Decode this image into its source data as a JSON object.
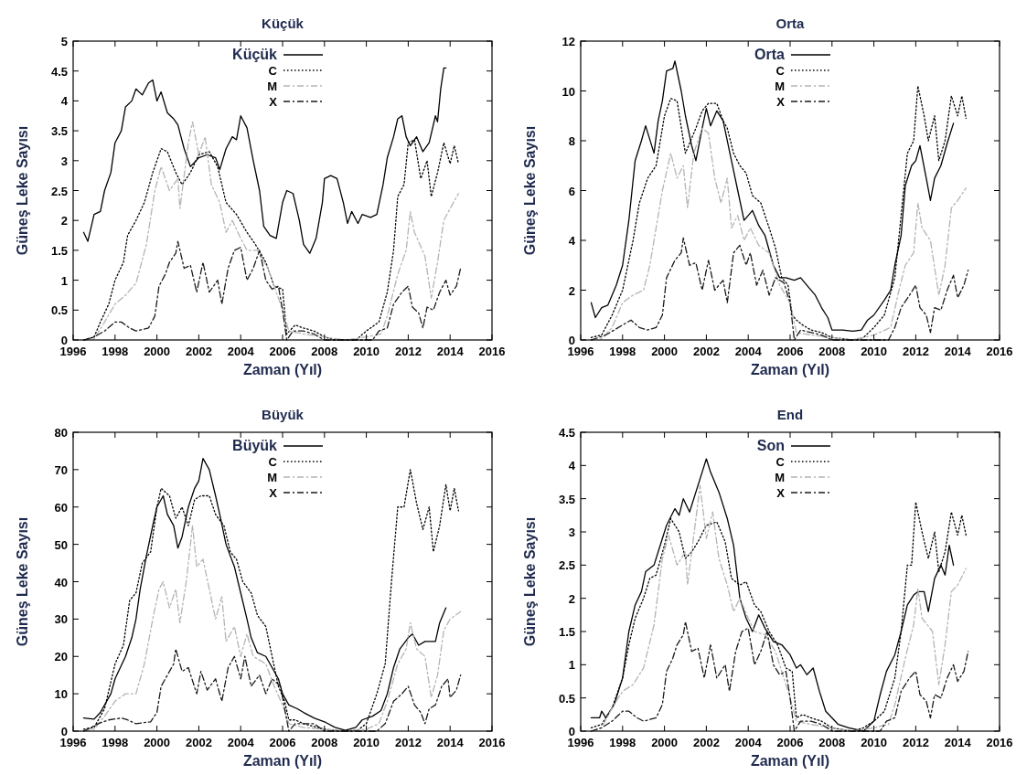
{
  "chart_data": [
    {
      "type": "line",
      "title": "Küçük",
      "xlabel": "Zaman (Yıl)",
      "ylabel": "Güneş Leke Sayısı",
      "xlim": [
        1996,
        2016
      ],
      "xticks": [
        1996,
        1998,
        2000,
        2002,
        2004,
        2006,
        2008,
        2010,
        2012,
        2014,
        2016
      ],
      "ylim": [
        0,
        5
      ],
      "yticks": [
        0,
        0.5,
        1,
        1.5,
        2,
        2.5,
        3,
        3.5,
        4,
        4.5,
        5
      ],
      "grid": false,
      "legend": "top",
      "marker": "none",
      "series": [
        {
          "name": "Küçük",
          "color": "#000000",
          "line_style": "solid",
          "x": [
            1996.5,
            1996.7,
            1997,
            1997.3,
            1997.5,
            1997.8,
            1998,
            1998.3,
            1998.5,
            1998.8,
            1999,
            1999.3,
            1999.6,
            1999.8,
            2000,
            2000.2,
            2000.5,
            2000.8,
            2001,
            2001.3,
            2001.6,
            2002,
            2002.4,
            2002.8,
            2003,
            2003.3,
            2003.6,
            2003.8,
            2004,
            2004.3,
            2004.6,
            2004.9,
            2005.1,
            2005.4,
            2005.7,
            2006,
            2006.2,
            2006.5,
            2006.8,
            2007,
            2007.3,
            2007.6,
            2007.9,
            2008,
            2008.3,
            2008.6,
            2008.9,
            2009.1,
            2009.3,
            2009.6,
            2009.8,
            2010.2,
            2010.5,
            2010.8,
            2011,
            2011.3,
            2011.5,
            2011.7,
            2011.9,
            2012.1,
            2012.4,
            2012.7,
            2013,
            2013.3,
            2013.4,
            2013.55,
            2013.7,
            2013.8
          ],
          "values": [
            1.8,
            1.65,
            2.1,
            2.15,
            2.5,
            2.8,
            3.3,
            3.5,
            3.9,
            4.0,
            4.2,
            4.1,
            4.3,
            4.35,
            4.0,
            4.15,
            3.8,
            3.7,
            3.6,
            3.2,
            2.9,
            3.05,
            3.1,
            3.05,
            2.85,
            3.2,
            3.4,
            3.35,
            3.75,
            3.55,
            3.0,
            2.5,
            1.9,
            1.75,
            1.7,
            2.3,
            2.5,
            2.45,
            2.0,
            1.6,
            1.45,
            1.7,
            2.3,
            2.7,
            2.75,
            2.7,
            2.3,
            1.95,
            2.15,
            1.95,
            2.1,
            2.05,
            2.1,
            2.6,
            3.05,
            3.4,
            3.7,
            3.75,
            3.4,
            3.25,
            3.4,
            3.15,
            3.3,
            3.75,
            3.65,
            4.2,
            4.55,
            4.55
          ]
        },
        {
          "name": "C",
          "color": "#000000",
          "line_style": "dotted",
          "x": [
            1996.5,
            1997,
            1997.3,
            1997.7,
            1998,
            1998.4,
            1998.6,
            1999,
            1999.4,
            1999.8,
            2000.2,
            2000.5,
            2000.9,
            2001.2,
            2001.6,
            2002,
            2002.5,
            2002.9,
            2003.3,
            2003.8,
            2004.3,
            2004.7,
            2005.2,
            2005.6,
            2006,
            2006.2,
            2006.6,
            2007,
            2007.5,
            2008,
            2008.5,
            2009.5,
            2010,
            2010.6,
            2011,
            2011.3,
            2011.5,
            2011.8,
            2012,
            2012.3,
            2012.6,
            2012.9,
            2013.1,
            2013.4,
            2013.7,
            2014,
            2014.2,
            2014.4
          ],
          "values": [
            0,
            0.05,
            0.3,
            0.6,
            1.0,
            1.3,
            1.75,
            2.0,
            2.3,
            2.8,
            3.2,
            3.15,
            2.8,
            2.6,
            2.8,
            3.1,
            3.15,
            2.9,
            2.3,
            2.1,
            1.8,
            1.6,
            1.3,
            0.9,
            0.85,
            0.1,
            0.25,
            0.2,
            0.15,
            0.05,
            0,
            0,
            0.15,
            0.3,
            0.8,
            1.5,
            2.4,
            2.6,
            3.3,
            3.35,
            2.7,
            3.0,
            2.4,
            2.8,
            3.3,
            2.95,
            3.25,
            2.95
          ]
        },
        {
          "name": "M",
          "color": "#b4b4b4",
          "line_style": "dashed",
          "x": [
            1996.5,
            1997,
            1997.5,
            1998,
            1998.5,
            1999,
            1999.5,
            1999.9,
            2000.2,
            2000.6,
            2001,
            2001.1,
            2001.5,
            2001.7,
            2002,
            2002.3,
            2002.6,
            2003,
            2003.3,
            2003.6,
            2004,
            2004.3,
            2004.8,
            2005.3,
            2005.7,
            2006,
            2006.3,
            2007,
            2008,
            2009,
            2010,
            2010.7,
            2011,
            2011.5,
            2011.9,
            2012.1,
            2012.3,
            2012.8,
            2013.1,
            2013.4,
            2013.7,
            2014,
            2014.4
          ],
          "values": [
            0,
            0.02,
            0.3,
            0.6,
            0.75,
            0.95,
            1.6,
            2.5,
            2.9,
            2.5,
            2.7,
            2.2,
            3.3,
            3.65,
            3.1,
            3.4,
            2.6,
            2.3,
            1.8,
            2.0,
            1.7,
            1.5,
            1.5,
            1.2,
            0.8,
            0.5,
            0.15,
            0.1,
            0.05,
            0,
            0.05,
            0.1,
            0.4,
            1.1,
            1.5,
            2.15,
            1.8,
            1.4,
            0.7,
            1.3,
            2.0,
            2.2,
            2.45
          ]
        },
        {
          "name": "X",
          "color": "#1a1a1a",
          "line_style": "dashed",
          "x": [
            1996.5,
            1997,
            1997.5,
            1998,
            1998.3,
            1998.7,
            1999,
            1999.6,
            1999.9,
            2000.1,
            2000.4,
            2000.6,
            2000.9,
            2001,
            2001.3,
            2001.6,
            2001.9,
            2002.2,
            2002.5,
            2002.9,
            2003.1,
            2003.4,
            2003.7,
            2004,
            2004.3,
            2004.6,
            2004.9,
            2005.2,
            2005.5,
            2005.8,
            2006,
            2006.2,
            2006.5,
            2007,
            2007.5,
            2008,
            2010.3,
            2010.6,
            2011,
            2011.3,
            2011.7,
            2012,
            2012.2,
            2012.5,
            2012.7,
            2012.9,
            2013.2,
            2013.5,
            2013.8,
            2014,
            2014.3,
            2014.5
          ],
          "values": [
            0,
            0.05,
            0.15,
            0.3,
            0.3,
            0.2,
            0.15,
            0.2,
            0.4,
            0.9,
            1.1,
            1.3,
            1.45,
            1.65,
            1.2,
            1.25,
            0.8,
            1.3,
            0.8,
            1.0,
            0.6,
            1.2,
            1.5,
            1.55,
            1.0,
            1.2,
            1.5,
            1.0,
            0.85,
            0.9,
            0.5,
            0,
            0.15,
            0.15,
            0.1,
            0,
            0,
            0.15,
            0.2,
            0.6,
            0.8,
            0.9,
            0.55,
            0.45,
            0.2,
            0.55,
            0.5,
            0.8,
            1.0,
            0.75,
            0.9,
            1.2
          ]
        }
      ]
    },
    {
      "type": "line",
      "title": "Orta",
      "xlabel": "Zaman (Yıl)",
      "ylabel": "Güneş Leke Sayısı",
      "xlim": [
        1996,
        2016
      ],
      "xticks": [
        1996,
        1998,
        2000,
        2002,
        2004,
        2006,
        2008,
        2010,
        2012,
        2014,
        2016
      ],
      "ylim": [
        0,
        12
      ],
      "yticks": [
        0,
        2,
        4,
        6,
        8,
        10,
        12
      ],
      "grid": false,
      "legend": "top",
      "marker": "none",
      "series": [
        {
          "name": "Orta",
          "color": "#000000",
          "line_style": "solid",
          "x": [
            1996.5,
            1996.7,
            1997,
            1997.3,
            1997.7,
            1998,
            1998.3,
            1998.6,
            1998.9,
            1999.1,
            1999.5,
            1999.7,
            1999.9,
            2000.1,
            2000.4,
            2000.5,
            2000.8,
            2001,
            2001.3,
            2001.5,
            2001.8,
            2002,
            2002.2,
            2002.5,
            2002.8,
            2003.2,
            2003.5,
            2003.8,
            2004.2,
            2004.5,
            2004.8,
            2005.2,
            2005.5,
            2005.8,
            2006.2,
            2006.5,
            2006.8,
            2007.2,
            2007.5,
            2007.8,
            2008,
            2008.5,
            2009,
            2009.4,
            2009.7,
            2010,
            2010.5,
            2010.8,
            2011,
            2011.3,
            2011.5,
            2011.8,
            2012,
            2012.2,
            2012.5,
            2012.7,
            2012.9,
            2013.2,
            2013.5,
            2013.8
          ],
          "values": [
            1.5,
            0.9,
            1.3,
            1.4,
            2.2,
            3.0,
            4.8,
            7.2,
            8.0,
            8.6,
            7.5,
            8.8,
            9.6,
            10.8,
            10.9,
            11.2,
            10.0,
            9.0,
            7.8,
            7.2,
            8.5,
            9.3,
            8.6,
            9.2,
            8.8,
            7.2,
            6.0,
            4.8,
            5.2,
            4.6,
            4.2,
            3.0,
            2.5,
            2.5,
            2.4,
            2.5,
            2.2,
            1.8,
            1.3,
            0.9,
            0.4,
            0.4,
            0.35,
            0.4,
            0.8,
            1.0,
            1.6,
            2.0,
            3.0,
            4.2,
            6.2,
            7.0,
            7.2,
            7.8,
            6.5,
            5.6,
            6.5,
            7.0,
            7.9,
            8.7
          ]
        },
        {
          "name": "C",
          "color": "#000000",
          "line_style": "dotted",
          "x": [
            1996.5,
            1997,
            1997.5,
            1998,
            1998.5,
            1998.8,
            1999.2,
            1999.6,
            2000,
            2000.3,
            2000.6,
            2001,
            2001.5,
            2001.8,
            2002.1,
            2002.5,
            2002.8,
            2003,
            2003.3,
            2003.6,
            2003.9,
            2004.2,
            2004.6,
            2005,
            2005.3,
            2005.6,
            2005.9,
            2006.1,
            2006.3,
            2006.6,
            2007,
            2007.5,
            2008,
            2009,
            2009.5,
            2010,
            2010.5,
            2011,
            2011.3,
            2011.6,
            2011.9,
            2012.1,
            2012.4,
            2012.6,
            2012.9,
            2013.1,
            2013.4,
            2013.7,
            2014,
            2014.2,
            2014.4
          ],
          "values": [
            0.1,
            0.2,
            1.0,
            2.0,
            4.0,
            5.5,
            6.5,
            7.0,
            9.0,
            9.7,
            9.6,
            7.5,
            8.5,
            9.2,
            9.5,
            9.5,
            8.8,
            8.5,
            7.5,
            7.0,
            6.7,
            5.8,
            5.5,
            4.5,
            3.7,
            2.5,
            2.2,
            1.0,
            0.8,
            0.6,
            0.4,
            0.3,
            0.1,
            0,
            0.1,
            0.5,
            1.0,
            2.5,
            5.0,
            7.5,
            8.0,
            10.2,
            9.0,
            8.0,
            9.0,
            7.2,
            8.0,
            9.8,
            9.0,
            9.8,
            8.9
          ]
        },
        {
          "name": "M",
          "color": "#b4b4b4",
          "line_style": "dashed",
          "x": [
            1996.5,
            1997,
            1997.5,
            1998,
            1998.5,
            1999,
            1999.3,
            1999.6,
            1999.9,
            2000.3,
            2000.6,
            2000.9,
            2001.1,
            2001.4,
            2001.8,
            2002.1,
            2002.4,
            2002.7,
            2003,
            2003.2,
            2003.5,
            2003.8,
            2004.1,
            2004.5,
            2005,
            2005.5,
            2006,
            2006.3,
            2007,
            2008,
            2009,
            2010,
            2010.8,
            2011.2,
            2011.5,
            2011.9,
            2012.1,
            2012.3,
            2012.7,
            2013.1,
            2013.4,
            2013.7,
            2014,
            2014.4
          ],
          "values": [
            0,
            0.05,
            0.5,
            1.5,
            1.8,
            2.0,
            3.0,
            4.5,
            6.0,
            7.5,
            6.5,
            7.0,
            5.3,
            7.5,
            8.5,
            8.3,
            6.5,
            5.5,
            6.5,
            4.5,
            5.0,
            4.0,
            4.5,
            3.8,
            3.5,
            2.2,
            1.5,
            0.3,
            0.2,
            0.1,
            0,
            0.2,
            0.5,
            2.0,
            3.0,
            3.5,
            5.5,
            4.5,
            4.0,
            1.8,
            3.0,
            5.3,
            5.6,
            6.1
          ]
        },
        {
          "name": "X",
          "color": "#1a1a1a",
          "line_style": "dashed",
          "x": [
            1996.5,
            1997.2,
            1997.6,
            1998,
            1998.4,
            1998.8,
            1999.2,
            1999.6,
            1999.9,
            2000.1,
            2000.5,
            2000.8,
            2000.9,
            2001.2,
            2001.5,
            2001.8,
            2002.1,
            2002.4,
            2002.8,
            2003,
            2003.3,
            2003.6,
            2003.9,
            2004.1,
            2004.4,
            2004.7,
            2005,
            2005.3,
            2005.7,
            2006,
            2006.2,
            2006.5,
            2007,
            2007.5,
            2008,
            2010.7,
            2011,
            2011.3,
            2011.7,
            2012,
            2012.2,
            2012.5,
            2012.7,
            2012.9,
            2013.2,
            2013.5,
            2013.8,
            2014,
            2014.3,
            2014.5
          ],
          "values": [
            0,
            0.2,
            0.4,
            0.6,
            0.8,
            0.5,
            0.4,
            0.5,
            1.0,
            2.5,
            3.2,
            3.5,
            4.1,
            3.0,
            3.1,
            2.0,
            3.2,
            2.0,
            2.4,
            1.5,
            3.5,
            3.8,
            3.0,
            3.5,
            2.2,
            2.8,
            1.8,
            2.5,
            2.3,
            1.5,
            0,
            0.4,
            0.3,
            0.2,
            0,
            0,
            0.5,
            1.3,
            1.8,
            2.2,
            1.3,
            1.0,
            0.3,
            1.3,
            1.2,
            2.0,
            2.6,
            1.7,
            2.2,
            2.8
          ]
        }
      ]
    },
    {
      "type": "line",
      "title": "Büyük",
      "xlabel": "Zaman (Yıl)",
      "ylabel": "Güneş Leke Sayısı",
      "xlim": [
        1996,
        2016
      ],
      "xticks": [
        1996,
        1998,
        2000,
        2002,
        2004,
        2006,
        2008,
        2010,
        2012,
        2014,
        2016
      ],
      "ylim": [
        0,
        80
      ],
      "yticks": [
        0,
        10,
        20,
        30,
        40,
        50,
        60,
        70,
        80
      ],
      "grid": false,
      "legend": "top",
      "marker": "none",
      "series": [
        {
          "name": "Büyük",
          "color": "#000000",
          "line_style": "solid",
          "x": [
            1996.5,
            1997,
            1997.3,
            1997.8,
            1998,
            1998.5,
            1998.8,
            1999,
            1999.2,
            1999.5,
            1999.8,
            2000,
            2000.3,
            2000.5,
            2000.8,
            2001,
            2001.2,
            2001.5,
            2001.8,
            2002,
            2002.2,
            2002.5,
            2002.8,
            2003,
            2003.3,
            2003.7,
            2004,
            2004.3,
            2004.5,
            2004.8,
            2005.2,
            2005.5,
            2005.8,
            2006,
            2006.3,
            2006.7,
            2007,
            2007.5,
            2008,
            2008.5,
            2009,
            2009.5,
            2009.8,
            2010.3,
            2010.7,
            2011,
            2011.3,
            2011.6,
            2012,
            2012.2,
            2012.5,
            2012.8,
            2013.1,
            2013.3,
            2013.5,
            2013.8
          ],
          "values": [
            3.5,
            3.2,
            5,
            10,
            14,
            20,
            25,
            30,
            38,
            47,
            55,
            60,
            63,
            58,
            55,
            49,
            52,
            60,
            65,
            67,
            73,
            70,
            63,
            58,
            50,
            44,
            37,
            30,
            25,
            21,
            20,
            17,
            14,
            10,
            7,
            6,
            5,
            3.5,
            2.5,
            1,
            0.2,
            1,
            3,
            4,
            5.5,
            10,
            17,
            22,
            25,
            26,
            23,
            24,
            24,
            24,
            29,
            33
          ]
        },
        {
          "name": "C",
          "color": "#000000",
          "line_style": "dotted",
          "x": [
            1996.5,
            1997,
            1997.5,
            1998,
            1998.4,
            1998.7,
            1999,
            1999.3,
            1999.7,
            2000,
            2000.2,
            2000.6,
            2000.9,
            2001.2,
            2001.5,
            2001.8,
            2002.1,
            2002.5,
            2002.8,
            2003.2,
            2003.5,
            2003.8,
            2004.1,
            2004.5,
            2004.8,
            2005.2,
            2005.5,
            2005.8,
            2006.1,
            2006.3,
            2006.6,
            2007,
            2008,
            2009,
            2009.6,
            2010,
            2010.5,
            2010.9,
            2011.2,
            2011.5,
            2011.8,
            2012.1,
            2012.4,
            2012.7,
            2013,
            2013.2,
            2013.5,
            2013.8,
            2014,
            2014.2,
            2014.4
          ],
          "values": [
            0.5,
            1,
            6,
            18,
            23,
            35,
            37,
            45,
            48,
            60,
            65,
            63,
            57,
            60,
            55,
            62,
            63,
            63,
            58,
            55,
            48,
            46,
            40,
            37,
            31,
            28,
            20,
            12,
            8,
            3,
            3,
            2,
            0.5,
            0,
            0.3,
            2,
            10,
            18,
            40,
            60,
            60,
            70,
            61,
            54,
            60,
            48,
            55,
            66,
            59,
            65,
            59
          ]
        },
        {
          "name": "M",
          "color": "#b4b4b4",
          "line_style": "dashed",
          "x": [
            1996.5,
            1997,
            1997.5,
            1998,
            1998.5,
            1999,
            1999.4,
            1999.8,
            2000.1,
            2000.3,
            2000.6,
            2000.9,
            2001.1,
            2001.4,
            2001.7,
            2001.9,
            2002.2,
            2002.5,
            2002.8,
            2003.1,
            2003.3,
            2003.7,
            2004,
            2004.3,
            2004.6,
            2005.2,
            2005.6,
            2006,
            2006.3,
            2007,
            2008,
            2009,
            2010,
            2010.6,
            2011,
            2011.5,
            2011.9,
            2012.1,
            2012.4,
            2012.8,
            2013.1,
            2013.4,
            2013.7,
            2014,
            2014.5
          ],
          "values": [
            0,
            0.5,
            4,
            8,
            10,
            10,
            18,
            30,
            38,
            40,
            33,
            38,
            29,
            40,
            55,
            44,
            46,
            38,
            30,
            36,
            24,
            28,
            20,
            26,
            20,
            18,
            12,
            7,
            2,
            1,
            0.5,
            0,
            0.5,
            2,
            8,
            18,
            22,
            29,
            22,
            20,
            9,
            15,
            27,
            30,
            32
          ]
        },
        {
          "name": "X",
          "color": "#1a1a1a",
          "line_style": "dashed",
          "x": [
            1996.5,
            1997.2,
            1997.7,
            1998.3,
            1998.6,
            1999,
            1999.7,
            2000,
            2000.2,
            2000.5,
            2000.8,
            2000.9,
            2001.2,
            2001.5,
            2001.9,
            2002.1,
            2002.4,
            2002.8,
            2003.1,
            2003.4,
            2003.7,
            2004,
            2004.2,
            2004.5,
            2004.9,
            2005.2,
            2005.5,
            2005.9,
            2006.1,
            2006.3,
            2006.6,
            2007.5,
            2008,
            2010.5,
            2010.9,
            2011.3,
            2011.7,
            2012,
            2012.3,
            2012.6,
            2012.8,
            2013,
            2013.3,
            2013.6,
            2013.9,
            2014,
            2014.3,
            2014.5
          ],
          "values": [
            0,
            2,
            3,
            3.5,
            3,
            2,
            2.5,
            5,
            12,
            15,
            18,
            22,
            16,
            17,
            10,
            16,
            11,
            14,
            8,
            17,
            20,
            14,
            20,
            12,
            15,
            10,
            14,
            12,
            6,
            0,
            2,
            2,
            0,
            0,
            2,
            8,
            10,
            12,
            7,
            5,
            2,
            6,
            7,
            12,
            14,
            9,
            11,
            15
          ]
        }
      ]
    },
    {
      "type": "line",
      "title": "End",
      "xlabel": "Zaman (Yıl)",
      "ylabel": "Güneş Leke Sayısı",
      "xlim": [
        1996,
        2016
      ],
      "xticks": [
        1996,
        1998,
        2000,
        2002,
        2004,
        2006,
        2008,
        2010,
        2012,
        2014,
        2016
      ],
      "ylim": [
        0,
        4.5
      ],
      "yticks": [
        0,
        0.5,
        1,
        1.5,
        2,
        2.5,
        3,
        3.5,
        4,
        4.5
      ],
      "grid": false,
      "legend": "top",
      "marker": "none",
      "series": [
        {
          "name": "Son",
          "color": "#000000",
          "line_style": "solid",
          "x": [
            1996.5,
            1996.9,
            1997,
            1997.2,
            1997.6,
            1998,
            1998.3,
            1998.6,
            1998.9,
            1999.1,
            1999.5,
            1999.9,
            2000.1,
            2000.5,
            2000.7,
            2000.9,
            2001.2,
            2001.5,
            2001.8,
            2002,
            2002.2,
            2002.6,
            2003,
            2003.3,
            2003.6,
            2003.9,
            2004.2,
            2004.5,
            2004.8,
            2005.2,
            2005.6,
            2006,
            2006.3,
            2006.5,
            2006.8,
            2007.1,
            2007.4,
            2007.7,
            2008,
            2008.3,
            2008.8,
            2009.5,
            2010,
            2010.3,
            2010.6,
            2011,
            2011.3,
            2011.6,
            2011.9,
            2012.1,
            2012.4,
            2012.6,
            2012.9,
            2013.2,
            2013.4,
            2013.6,
            2013.8
          ],
          "values": [
            0.2,
            0.2,
            0.3,
            0.2,
            0.4,
            0.8,
            1.5,
            1.9,
            2.1,
            2.4,
            2.5,
            2.9,
            3.1,
            3.35,
            3.25,
            3.5,
            3.3,
            3.6,
            3.9,
            4.1,
            3.9,
            3.6,
            3.2,
            2.8,
            2.0,
            1.7,
            1.5,
            1.75,
            1.55,
            1.35,
            1.3,
            1.15,
            0.95,
            1.0,
            0.85,
            0.95,
            0.6,
            0.3,
            0.2,
            0.1,
            0.05,
            0,
            0.15,
            0.55,
            0.9,
            1.15,
            1.5,
            1.9,
            2.05,
            2.1,
            2.1,
            1.8,
            2.3,
            2.5,
            2.35,
            2.8,
            2.5
          ]
        },
        {
          "name": "C",
          "color": "#000000",
          "line_style": "dotted",
          "x": [
            1996.5,
            1997,
            1997.5,
            1998,
            1998.3,
            1998.6,
            1999,
            1999.3,
            1999.6,
            2000,
            2000.3,
            2000.7,
            2001,
            2001.3,
            2001.6,
            2002,
            2002.5,
            2002.9,
            2003.2,
            2003.6,
            2003.9,
            2004.3,
            2004.6,
            2005,
            2005.4,
            2005.8,
            2006.1,
            2006.3,
            2006.6,
            2007,
            2007.5,
            2008,
            2009,
            2009.5,
            2010,
            2010.5,
            2011,
            2011.3,
            2011.6,
            2011.8,
            2012,
            2012.3,
            2012.6,
            2012.9,
            2013.1,
            2013.4,
            2013.7,
            2014,
            2014.2,
            2014.4
          ],
          "values": [
            0.05,
            0.1,
            0.35,
            0.8,
            1.3,
            1.7,
            2.0,
            2.3,
            2.35,
            2.8,
            3.2,
            3.0,
            2.6,
            2.7,
            2.85,
            3.1,
            3.15,
            2.85,
            2.3,
            2.2,
            2.25,
            1.9,
            1.8,
            1.5,
            1.3,
            0.95,
            0.9,
            0.2,
            0.25,
            0.2,
            0.15,
            0.05,
            0,
            0.05,
            0.15,
            0.3,
            0.8,
            1.5,
            2.5,
            2.5,
            3.45,
            3.0,
            2.6,
            3.0,
            2.4,
            2.7,
            3.3,
            2.95,
            3.25,
            2.95
          ]
        },
        {
          "name": "M",
          "color": "#b4b4b4",
          "line_style": "dashed",
          "x": [
            1996.5,
            1997,
            1997.5,
            1998,
            1998.5,
            1999,
            1999.5,
            1999.9,
            2000.2,
            2000.6,
            2001,
            2001.1,
            2001.5,
            2001.7,
            2002,
            2002.3,
            2002.6,
            2003,
            2003.3,
            2003.6,
            2004,
            2004.3,
            2004.8,
            2005.3,
            2005.7,
            2006,
            2006.3,
            2007,
            2008,
            2009,
            2010,
            2010.7,
            2011,
            2011.5,
            2011.9,
            2012.1,
            2012.3,
            2012.8,
            2013.1,
            2013.4,
            2013.7,
            2014,
            2014.4
          ],
          "values": [
            0,
            0.05,
            0.35,
            0.6,
            0.7,
            0.95,
            1.6,
            2.6,
            2.95,
            2.5,
            2.7,
            2.2,
            3.2,
            3.7,
            2.9,
            3.3,
            2.6,
            2.2,
            1.8,
            2.0,
            1.7,
            1.5,
            1.45,
            1.2,
            0.8,
            0.5,
            0.15,
            0.1,
            0.05,
            0,
            0.05,
            0.1,
            0.4,
            1.1,
            1.6,
            2.15,
            1.7,
            1.5,
            0.7,
            1.3,
            2.1,
            2.2,
            2.45
          ]
        },
        {
          "name": "X",
          "color": "#1a1a1a",
          "line_style": "dashed",
          "x": [
            1996.5,
            1997,
            1997.5,
            1998,
            1998.3,
            1998.7,
            1999,
            1999.6,
            1999.9,
            2000.1,
            2000.4,
            2000.6,
            2000.9,
            2001,
            2001.3,
            2001.6,
            2001.9,
            2002.2,
            2002.5,
            2002.9,
            2003.1,
            2003.4,
            2003.7,
            2004,
            2004.3,
            2004.6,
            2004.9,
            2005.2,
            2005.5,
            2005.8,
            2006,
            2006.2,
            2006.5,
            2007,
            2007.5,
            2008,
            2010.3,
            2010.6,
            2011,
            2011.3,
            2011.7,
            2012,
            2012.2,
            2012.5,
            2012.7,
            2012.9,
            2013.2,
            2013.5,
            2013.8,
            2014,
            2014.3,
            2014.5
          ],
          "values": [
            0,
            0.05,
            0.15,
            0.3,
            0.3,
            0.2,
            0.15,
            0.2,
            0.4,
            0.9,
            1.1,
            1.3,
            1.45,
            1.65,
            1.2,
            1.25,
            0.8,
            1.3,
            0.8,
            1.0,
            0.6,
            1.2,
            1.5,
            1.55,
            1.0,
            1.2,
            1.5,
            1.0,
            0.85,
            0.9,
            0.5,
            0,
            0.15,
            0.15,
            0.1,
            0,
            0,
            0.15,
            0.2,
            0.6,
            0.8,
            0.9,
            0.55,
            0.45,
            0.2,
            0.55,
            0.5,
            0.8,
            1.0,
            0.75,
            0.9,
            1.2
          ]
        }
      ]
    }
  ]
}
